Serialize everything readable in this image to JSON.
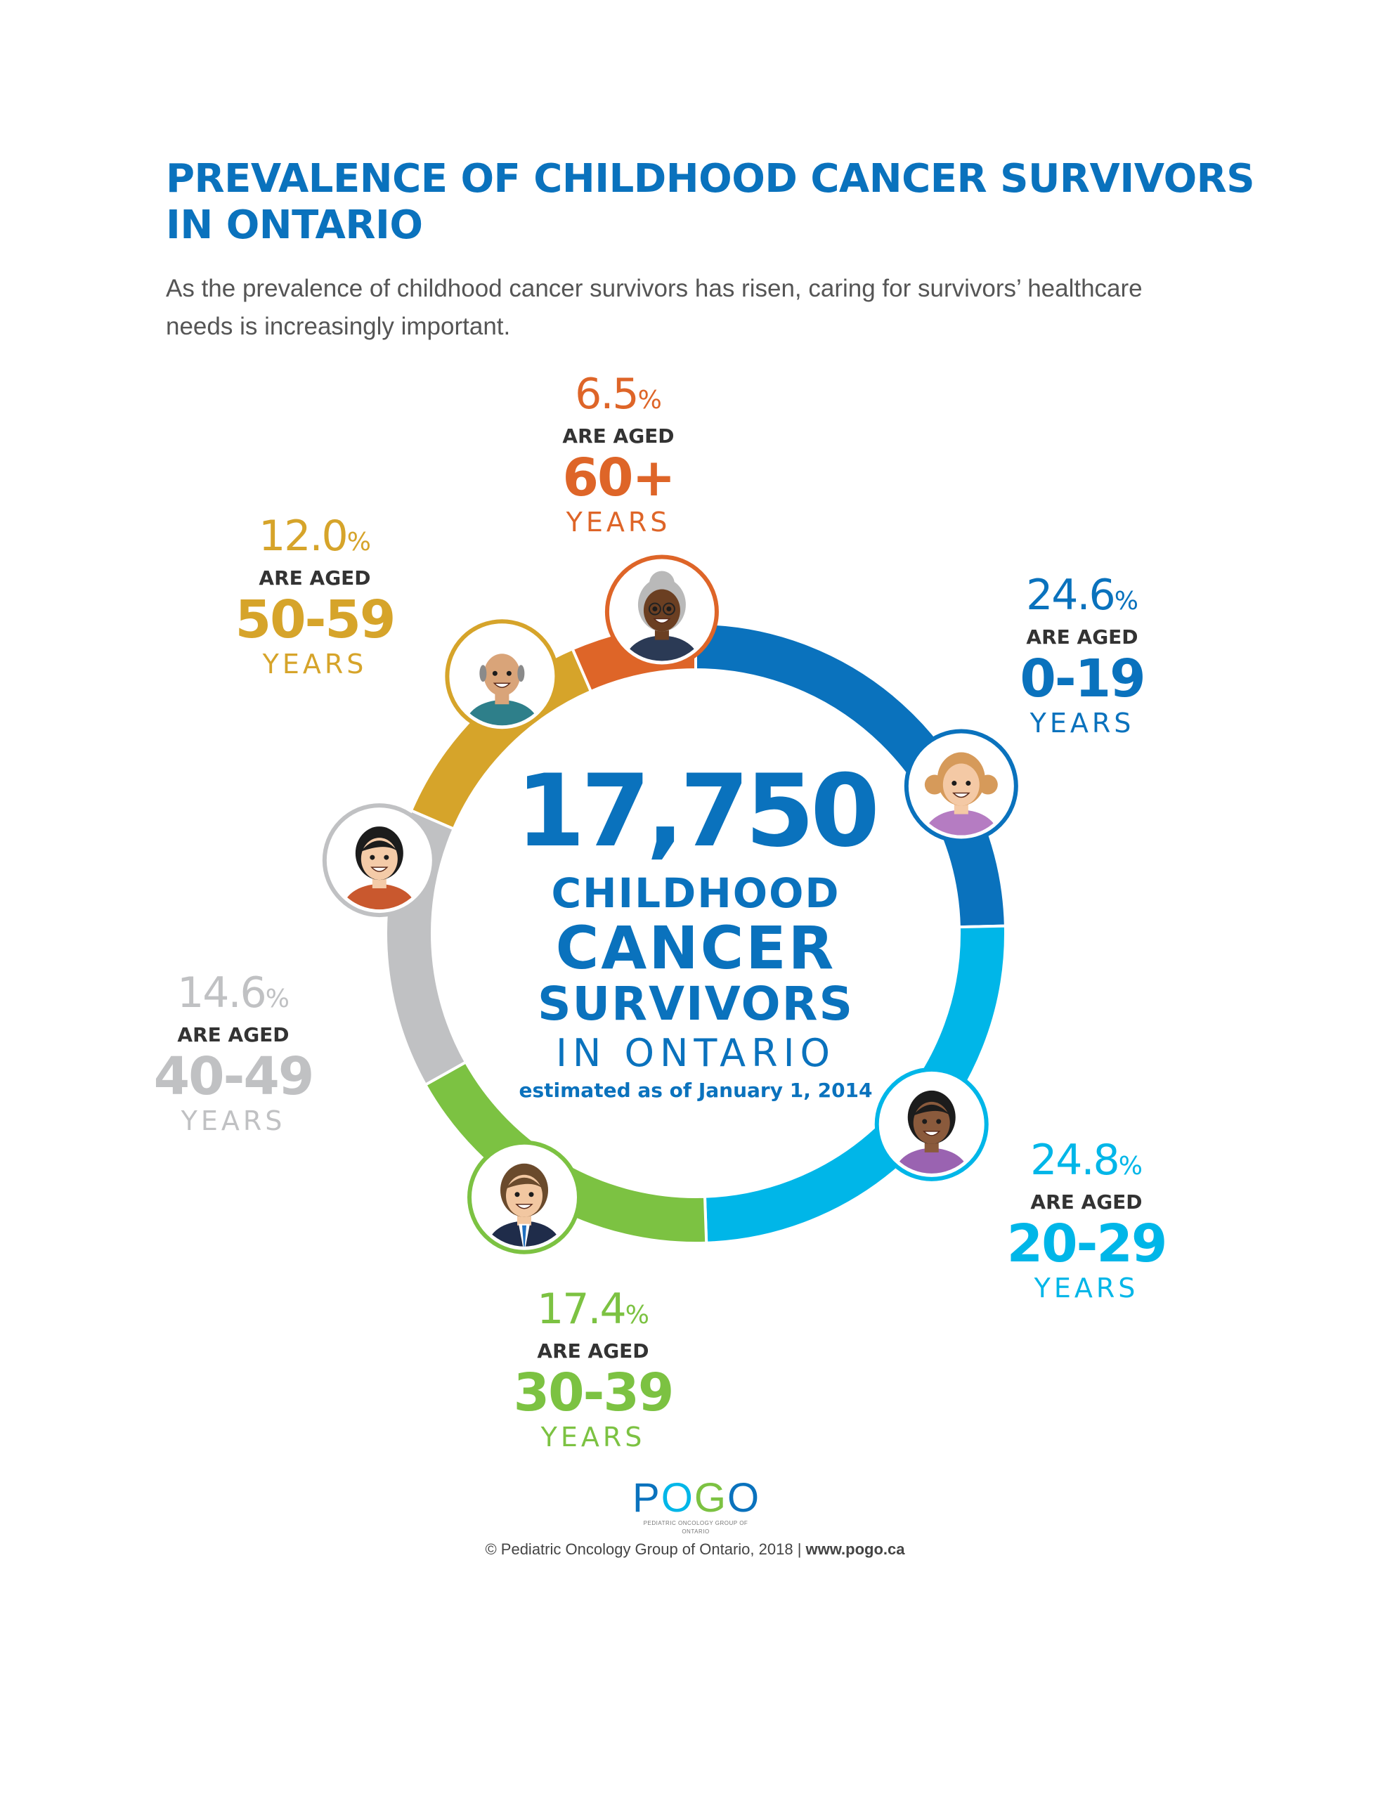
{
  "header": {
    "title_line1": "PREVALENCE OF CHILDHOOD CANCER SURVIVORS",
    "title_line2": "IN ONTARIO",
    "subtitle_line1": "As the prevalence of childhood cancer survivors has risen, caring for survivors’ healthcare",
    "subtitle_line2": "needs is increasingly important."
  },
  "center": {
    "total": "17,750",
    "line1": "CHILDHOOD",
    "line2": "CANCER",
    "line3": "SURVIVORS",
    "line4": "IN ONTARIO",
    "note": "estimated as of January 1, 2014"
  },
  "chart_data": {
    "type": "pie",
    "title": "",
    "categories": [
      "0-19",
      "20-29",
      "30-39",
      "40-49",
      "50-59",
      "60+"
    ],
    "values": [
      24.6,
      24.8,
      17.4,
      14.6,
      12.0,
      6.5
    ],
    "unit": "%",
    "colors": [
      "#0a72bd",
      "#00b6e8",
      "#7cc242",
      "#c0c1c3",
      "#d6a42a",
      "#de6528"
    ],
    "labels": [
      {
        "value": "24.6",
        "pct": "%",
        "aged": "ARE AGED",
        "range": "0-19",
        "years": "YEARS"
      },
      {
        "value": "24.8",
        "pct": "%",
        "aged": "ARE AGED",
        "range": "20-29",
        "years": "YEARS"
      },
      {
        "value": "17.4",
        "pct": "%",
        "aged": "ARE AGED",
        "range": "30-39",
        "years": "YEARS"
      },
      {
        "value": "14.6",
        "pct": "%",
        "aged": "ARE AGED",
        "range": "40-49",
        "years": "YEARS"
      },
      {
        "value": "12.0",
        "pct": "%",
        "aged": "ARE AGED",
        "range": "50-59",
        "years": "YEARS"
      },
      {
        "value": "6.5",
        "pct": "%",
        "aged": "ARE AGED",
        "range": "60+",
        "years": "YEARS"
      }
    ]
  },
  "avatars": [
    {
      "icon": "girl-pigtails-avatar-icon",
      "skin": "#f4c9a5",
      "hair": "#d69a5a",
      "shirt": "#b57cc2"
    },
    {
      "icon": "woman-dark-hair-avatar-icon",
      "skin": "#8a5a3c",
      "hair": "#1c1c1c",
      "shirt": "#9a63b1"
    },
    {
      "icon": "man-suit-avatar-icon",
      "skin": "#f2c7a1",
      "hair": "#6a4a2c",
      "shirt": "#1f2c4a"
    },
    {
      "icon": "woman-black-hair-avatar-icon",
      "skin": "#f4cba8",
      "hair": "#1c1c1c",
      "shirt": "#c9582e"
    },
    {
      "icon": "bald-man-avatar-icon",
      "skin": "#d9a479",
      "hair": "#8a8a8a",
      "shirt": "#2e7f8a"
    },
    {
      "icon": "grandmother-glasses-avatar-icon",
      "skin": "#6b3f22",
      "hair": "#b9b9b9",
      "shirt": "#2b3a55"
    }
  ],
  "logo": {
    "text_p": "P",
    "text_o1": "O",
    "text_g": "G",
    "text_o2": "O",
    "subtext": "PEDIATRIC ONCOLOGY GROUP OF ONTARIO"
  },
  "footer": {
    "copyright": "© Pediatric Oncology Group of Ontario, 2018 | ",
    "url": "www.pogo.ca"
  }
}
